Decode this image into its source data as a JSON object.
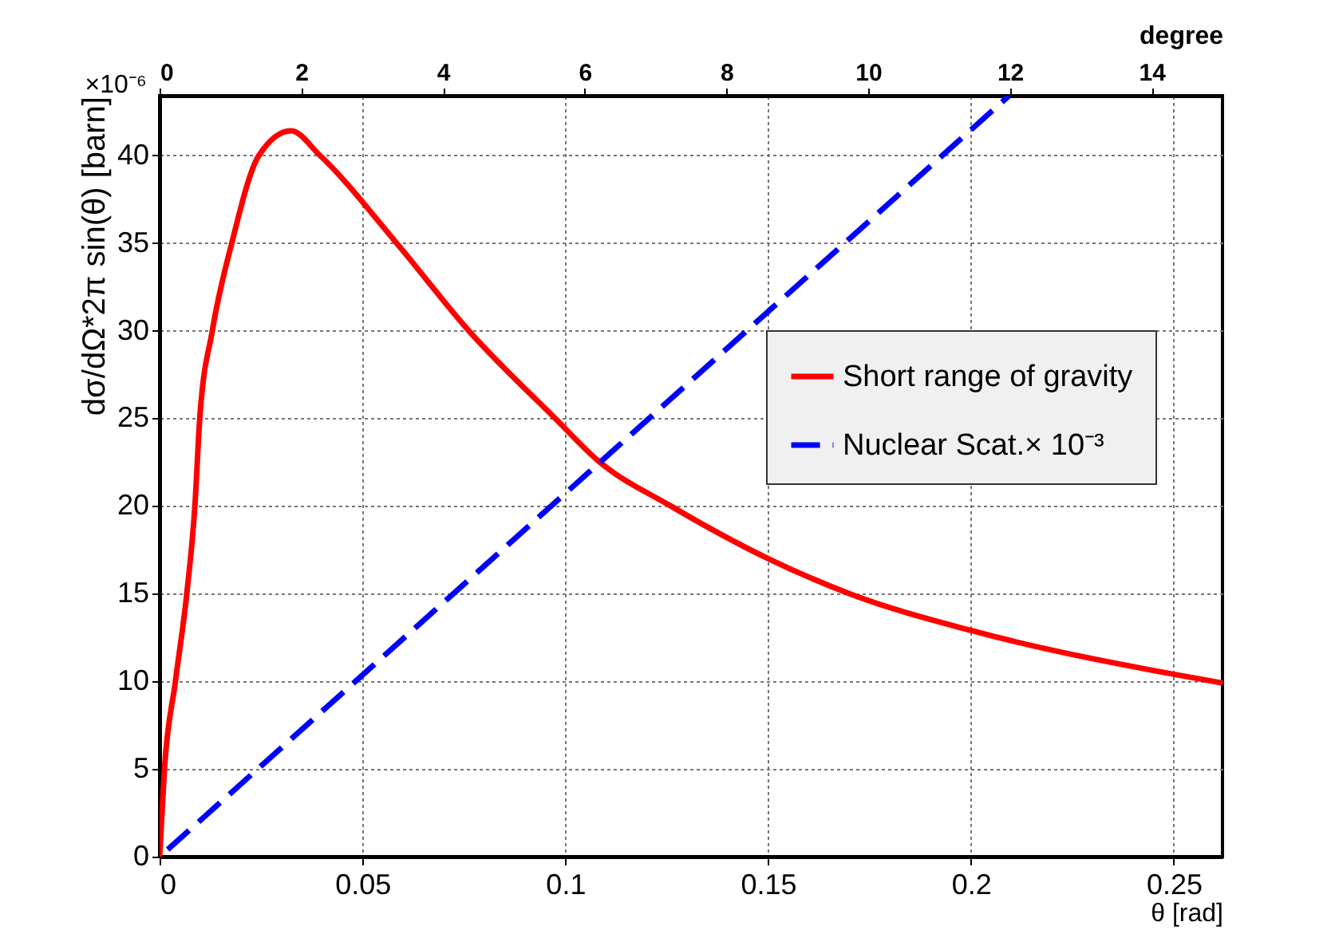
{
  "chart_data": {
    "type": "line",
    "xlabel": "θ [rad]",
    "ylabel": "dσ/dΩ*2π sin(θ) [barn]",
    "x2label": "degree",
    "annotations": [
      "×10⁻⁶"
    ],
    "xlim": [
      0,
      0.262
    ],
    "xticks": [
      0,
      0.05,
      0.1,
      0.15,
      0.2,
      0.25
    ],
    "x2lim": [
      0,
      15
    ],
    "x2ticks": [
      0,
      2,
      4,
      6,
      8,
      10,
      12,
      14
    ],
    "ylim": [
      0,
      43.4
    ],
    "yticks": [
      0,
      5,
      10,
      15,
      20,
      25,
      30,
      35,
      40
    ],
    "grid": true,
    "legend": "right",
    "series": [
      {
        "name": "Short range of gravity",
        "color": "#ff0000",
        "line_style": "solid",
        "x": [
          0,
          0.0012,
          0.0039,
          0.0067,
          0.0087,
          0.0099,
          0.013,
          0.0178,
          0.0245,
          0.0324,
          0.0395,
          0.0584,
          0.0762,
          0.0975,
          0.108,
          0.126,
          0.15,
          0.17,
          0.2,
          0.25,
          0.262
        ],
        "values": [
          0,
          5,
          10,
          15,
          20,
          25,
          30,
          35,
          40,
          41.4,
          40,
          35,
          30,
          25,
          22.6,
          20,
          17,
          15,
          12.9,
          10.4,
          9.9
        ]
      },
      {
        "name": "Nuclear Scat.× 10⁻³",
        "color": "#0000ff",
        "line_style": "dashed",
        "x": [
          0.002,
          0.2094
        ],
        "values": [
          0.4,
          43.4
        ]
      }
    ]
  }
}
